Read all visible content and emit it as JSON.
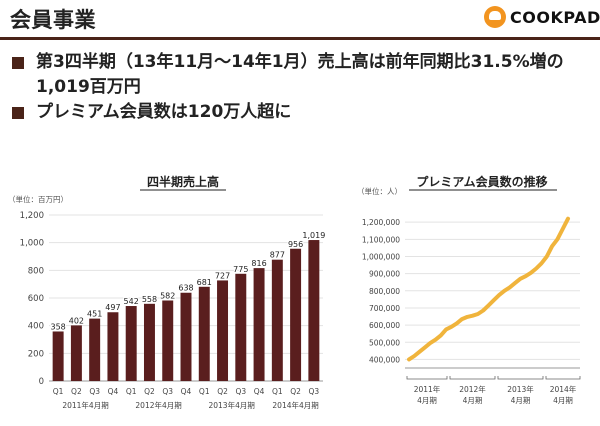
{
  "header": {
    "title": "会員事業",
    "brand": "COOKPAD"
  },
  "bullets": [
    "第3四半期（13年11月〜14年1月）売上高は前年同期比31.5%増の",
    "1,019百万円",
    "プレミアム会員数は120万人超に"
  ],
  "colors": {
    "bar": "#5a1e1e",
    "line": "#f0b43c",
    "accent": "#4a2318"
  },
  "chart_data": [
    {
      "type": "bar",
      "title": "四半期売上高",
      "ylabel": "（単位：百万円）",
      "ylim": [
        0,
        1200
      ],
      "yticks": [
        "0",
        "200",
        "400",
        "600",
        "800",
        "1,000",
        "1,200"
      ],
      "categories": [
        "Q1",
        "Q2",
        "Q3",
        "Q4",
        "Q1",
        "Q2",
        "Q3",
        "Q4",
        "Q1",
        "Q2",
        "Q3",
        "Q4",
        "Q1",
        "Q2",
        "Q3"
      ],
      "values": [
        358,
        402,
        451,
        497,
        542,
        558,
        582,
        638,
        681,
        727,
        775,
        816,
        877,
        956,
        1019
      ],
      "value_labels": [
        "358",
        "402",
        "451",
        "497",
        "542",
        "558",
        "582",
        "638",
        "681",
        "727",
        "775",
        "816",
        "877",
        "956",
        "1,019"
      ],
      "groups": [
        "2011年4月期",
        "2012年4月期",
        "2013年4月期",
        "2014年4月期"
      ],
      "grid": true
    },
    {
      "type": "line",
      "title": "プレミアム会員数の推移",
      "ylabel": "（単位：人）",
      "ylim": [
        350000,
        1300000
      ],
      "yticks": [
        "400,000",
        "500,000",
        "600,000",
        "700,000",
        "800,000",
        "900,000",
        "1,000,000",
        "1,100,000",
        "1,200,000"
      ],
      "groups": [
        {
          "year": "2011年",
          "period": "4月期"
        },
        {
          "year": "2012年",
          "period": "4月期"
        },
        {
          "year": "2013年",
          "period": "4月期"
        },
        {
          "year": "2014年",
          "period": "4月期"
        }
      ],
      "values": [
        400000,
        420000,
        445000,
        470000,
        495000,
        515000,
        540000,
        575000,
        590000,
        610000,
        635000,
        648000,
        655000,
        665000,
        685000,
        715000,
        745000,
        775000,
        800000,
        820000,
        845000,
        870000,
        885000,
        905000,
        930000,
        960000,
        1000000,
        1060000,
        1100000,
        1160000,
        1220000
      ],
      "grid": true
    }
  ]
}
